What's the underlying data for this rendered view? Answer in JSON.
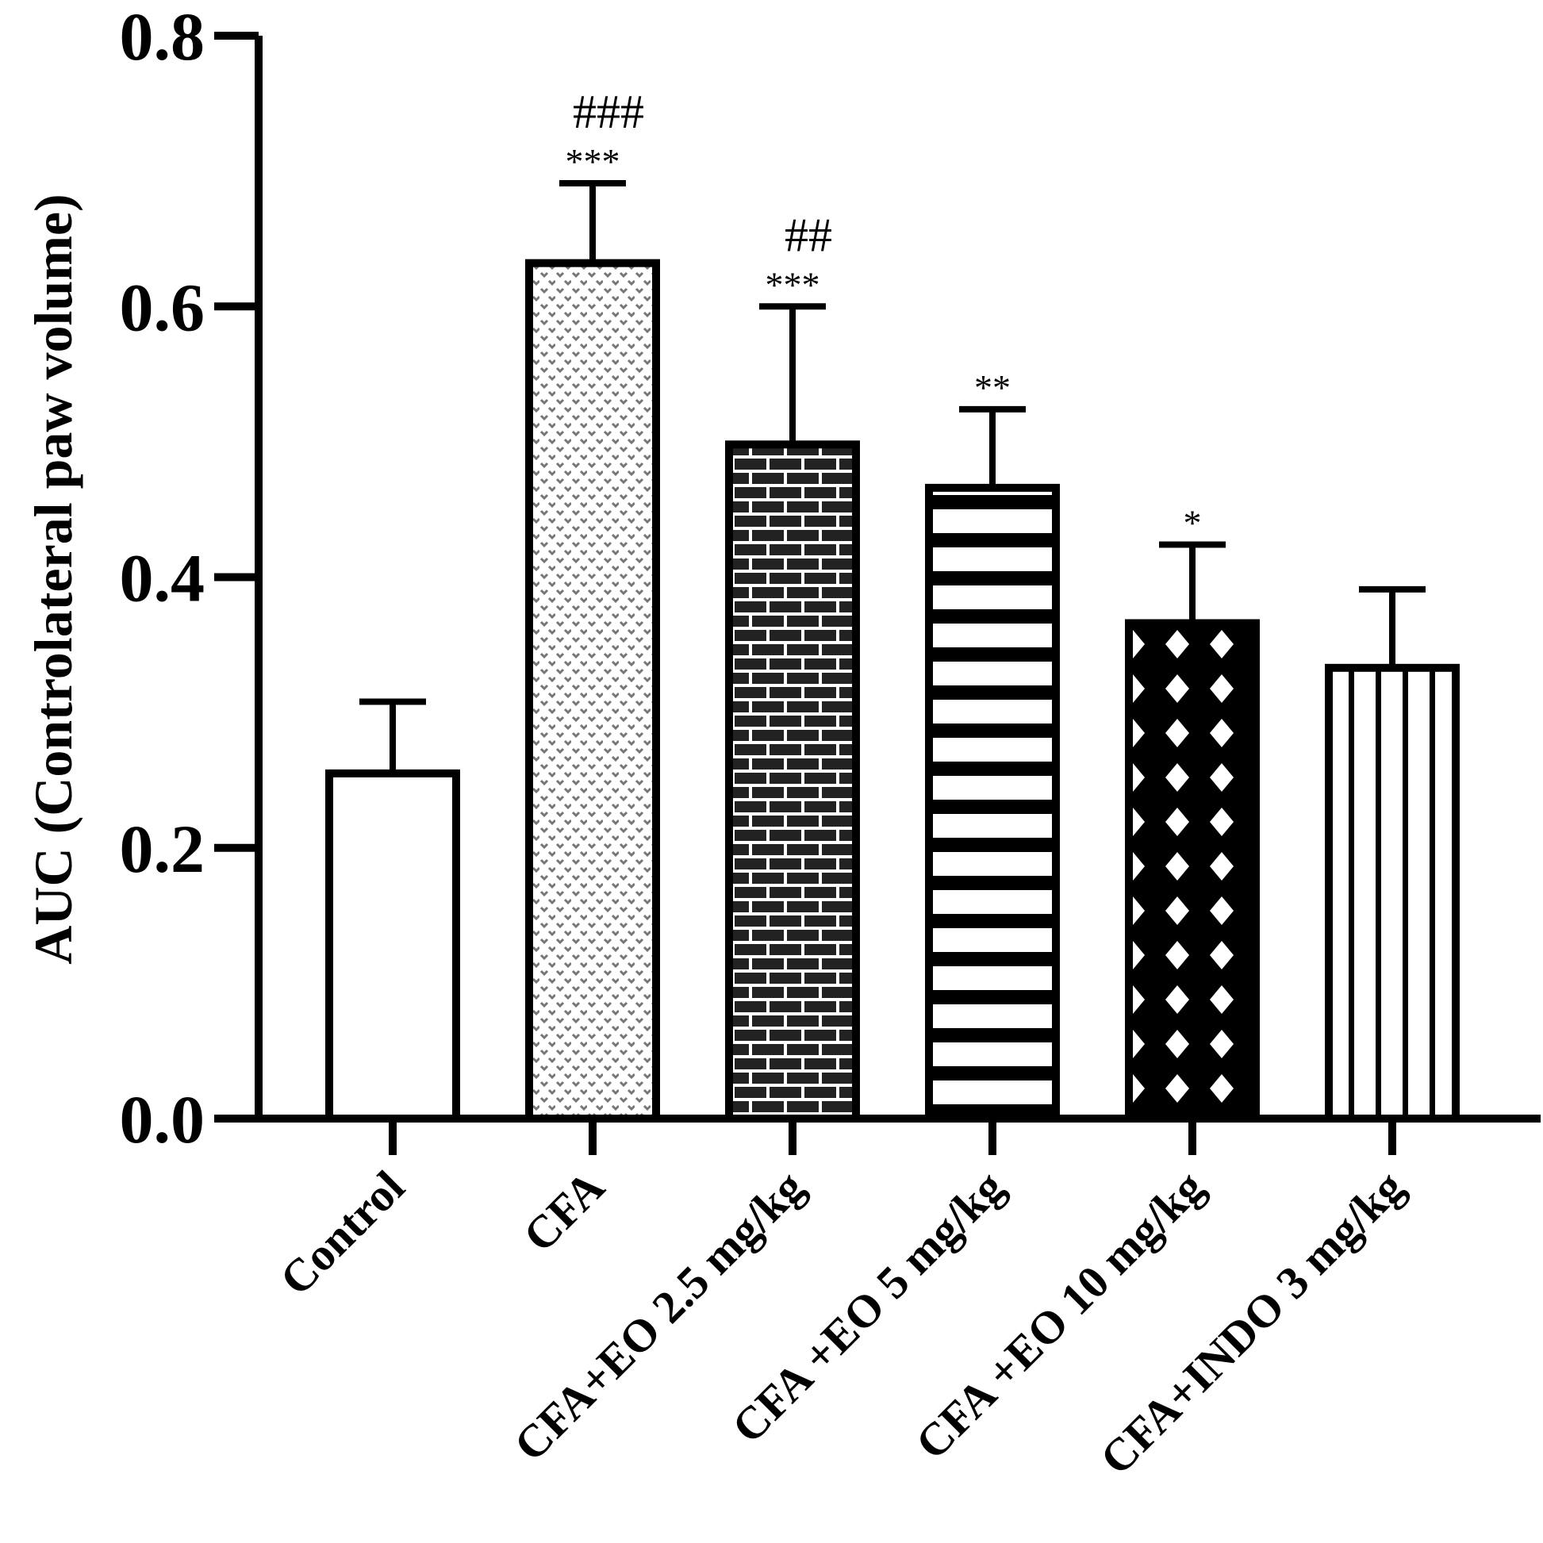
{
  "chart_data": {
    "type": "bar",
    "title": "",
    "xlabel": "",
    "ylabel": "AUC (Controlateral paw volume)",
    "ylim": [
      0,
      0.8
    ],
    "yticks": [
      0.0,
      0.2,
      0.4,
      0.6,
      0.8
    ],
    "ytick_labels": [
      "0.0",
      "0.2",
      "0.4",
      "0.6",
      "0.8"
    ],
    "categories": [
      "Control",
      "CFA",
      "CFA+EO 2.5 mg/kg",
      "CFA +EO 5 mg/kg",
      "CFA +EO 10 mg/kg",
      "CFA+INDO 3 mg/kg"
    ],
    "values": [
      0.255,
      0.632,
      0.498,
      0.466,
      0.366,
      0.333
    ],
    "errors": [
      0.053,
      0.059,
      0.102,
      0.058,
      0.058,
      0.058
    ],
    "patterns": [
      "white",
      "dots",
      "brick",
      "hstripes",
      "diamonds",
      "vstripes"
    ],
    "annotations": [
      {
        "star": "",
        "hash": ""
      },
      {
        "star": "***",
        "hash": "###"
      },
      {
        "star": "***",
        "hash": "##"
      },
      {
        "star": "**",
        "hash": ""
      },
      {
        "star": "*",
        "hash": ""
      },
      {
        "star": "",
        "hash": ""
      }
    ],
    "colors": {
      "ink": "#000000",
      "fill": "#ffffff",
      "dark": "#222222",
      "dot": "#777777"
    }
  }
}
